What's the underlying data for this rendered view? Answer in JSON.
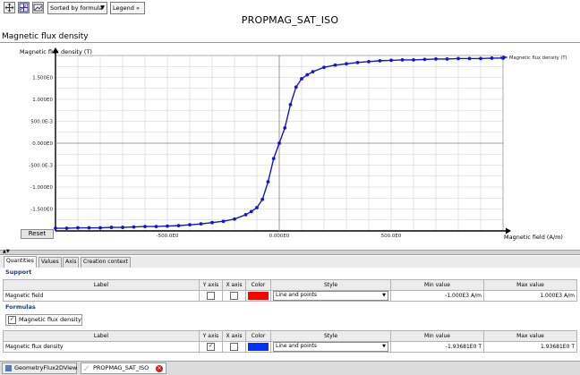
{
  "toolbar": {
    "sort_label": "Sorted by formula",
    "legend_label": "Legend",
    "legend_arrows": "»"
  },
  "header": {
    "title": "PROPMAG_SAT_ISO",
    "subtitle": "Magnetic flux density"
  },
  "reset_label": "Reset",
  "chart_data": {
    "type": "line",
    "ylabel": "Magnetic flux density (T)",
    "xlabel": "Magnetic field (A/m)",
    "legend": "Magnetic flux density (T)",
    "legend_position": "top-right",
    "grid": true,
    "xlim": [
      -1000,
      1000
    ],
    "ylim": [
      -2,
      2
    ],
    "y_ticks": [
      {
        "value": 1.5,
        "label": "1.500E0"
      },
      {
        "value": 1.0,
        "label": "1.000E0"
      },
      {
        "value": 0.5,
        "label": "500.0E-3"
      },
      {
        "value": 0.0,
        "label": "0.000E0"
      },
      {
        "value": -0.5,
        "label": "-500.0E-3"
      },
      {
        "value": -1.0,
        "label": "-1.000E0"
      },
      {
        "value": -1.5,
        "label": "-1.500E0"
      }
    ],
    "x_ticks": [
      {
        "value": -500,
        "label": "-500.0E0"
      },
      {
        "value": 0,
        "label": "0.000E0"
      },
      {
        "value": 500,
        "label": "500.0E0"
      }
    ],
    "color": "#1515d0",
    "series": [
      {
        "name": "Magnetic flux density (T)",
        "x": [
          -1000,
          -950,
          -900,
          -850,
          -800,
          -750,
          -700,
          -650,
          -600,
          -550,
          -500,
          -450,
          -400,
          -350,
          -300,
          -250,
          -200,
          -150,
          -125,
          -100,
          -75,
          -50,
          -25,
          0,
          25,
          50,
          75,
          100,
          125,
          150,
          200,
          250,
          300,
          350,
          400,
          450,
          500,
          550,
          600,
          650,
          700,
          750,
          800,
          850,
          900,
          950,
          1000
        ],
        "values": [
          -1.94,
          -1.94,
          -1.93,
          -1.93,
          -1.93,
          -1.92,
          -1.92,
          -1.91,
          -1.9,
          -1.9,
          -1.89,
          -1.88,
          -1.86,
          -1.84,
          -1.81,
          -1.78,
          -1.73,
          -1.63,
          -1.56,
          -1.47,
          -1.28,
          -0.88,
          -0.35,
          0.0,
          0.35,
          0.88,
          1.28,
          1.47,
          1.56,
          1.63,
          1.73,
          1.78,
          1.81,
          1.84,
          1.86,
          1.88,
          1.89,
          1.9,
          1.9,
          1.91,
          1.92,
          1.92,
          1.93,
          1.93,
          1.93,
          1.94,
          1.94
        ]
      }
    ]
  },
  "tabs": [
    {
      "label": "Quantities"
    },
    {
      "label": "Values"
    },
    {
      "label": "Axis"
    },
    {
      "label": "Creation context"
    }
  ],
  "support": {
    "section_label": "Support",
    "columns": [
      "Label",
      "Y axis",
      "X axis",
      "Color",
      "Style",
      "Min value",
      "Max value"
    ],
    "row": {
      "label": "Magnetic field",
      "y_axis": false,
      "x_axis": false,
      "color": "#ff0000",
      "style": "Line and points",
      "min": "-1.000E3 A/m",
      "max": "1.000E3 A/m"
    }
  },
  "formulas": {
    "section_label": "Formulas",
    "tab_label": "Magnetic flux density",
    "columns": [
      "Label",
      "Y axis",
      "X axis",
      "Color",
      "Style",
      "Min value",
      "Max value"
    ],
    "row": {
      "label": "Magnetic flux density",
      "y_axis": true,
      "x_axis": false,
      "color": "#0033ff",
      "style": "Line and points",
      "min": "-1.93681E0 T",
      "max": "1.93681E0 T"
    }
  },
  "taskbar": {
    "tabs": [
      {
        "label": "GeometryFlux2DView",
        "active": false
      },
      {
        "label": "PROPMAG_SAT_ISO",
        "active": true
      }
    ]
  }
}
